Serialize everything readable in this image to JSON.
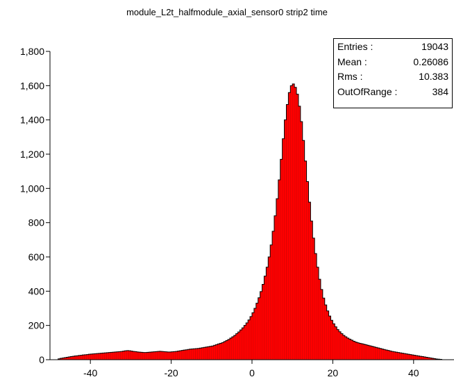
{
  "chart_data": {
    "type": "bar",
    "title": "module_L2t_halfmodule_axial_sensor0 strip2 time",
    "xlabel": "",
    "ylabel": "",
    "xlim": [
      -50,
      50
    ],
    "ylim": [
      0,
      1800
    ],
    "x_ticks": [
      -40,
      -20,
      0,
      20,
      40
    ],
    "x_tick_labels": [
      "-40",
      "-20",
      "0",
      "20",
      "40"
    ],
    "y_ticks": [
      0,
      200,
      400,
      600,
      800,
      1000,
      1200,
      1400,
      1600,
      1800
    ],
    "y_tick_labels": [
      "0",
      "200",
      "400",
      "600",
      "800",
      "1,000",
      "1,200",
      "1,400",
      "1,600",
      "1,800"
    ],
    "grid": false,
    "bin_edges_start": -48,
    "bin_width": 0.5,
    "series": [
      {
        "color": "#ff0000",
        "values": [
          5,
          8,
          10,
          12,
          14,
          16,
          18,
          20,
          22,
          23,
          25,
          26,
          28,
          29,
          30,
          32,
          33,
          34,
          35,
          36,
          37,
          38,
          39,
          40,
          41,
          42,
          43,
          44,
          45,
          46,
          47,
          48,
          50,
          52,
          53,
          52,
          50,
          48,
          47,
          45,
          44,
          43,
          42,
          42,
          43,
          44,
          45,
          46,
          47,
          48,
          49,
          48,
          47,
          46,
          45,
          45,
          46,
          47,
          48,
          50,
          52,
          54,
          56,
          58,
          60,
          62,
          63,
          64,
          65,
          66,
          68,
          70,
          72,
          74,
          76,
          78,
          80,
          84,
          88,
          92,
          96,
          100,
          106,
          112,
          118,
          126,
          134,
          142,
          152,
          162,
          174,
          186,
          200,
          215,
          232,
          252,
          274,
          300,
          330,
          362,
          398,
          440,
          488,
          540,
          600,
          670,
          750,
          840,
          940,
          1050,
          1170,
          1290,
          1400,
          1490,
          1560,
          1600,
          1610,
          1590,
          1550,
          1480,
          1390,
          1280,
          1160,
          1040,
          920,
          810,
          710,
          620,
          540,
          470,
          410,
          360,
          320,
          285,
          255,
          230,
          210,
          192,
          176,
          163,
          152,
          142,
          134,
          126,
          120,
          114,
          108,
          103,
          99,
          96,
          93,
          90,
          87,
          84,
          81,
          78,
          75,
          72,
          69,
          66,
          63,
          60,
          57,
          54,
          51,
          48,
          46,
          44,
          42,
          40,
          38,
          36,
          34,
          32,
          30,
          28,
          26,
          24,
          22,
          20,
          18,
          16,
          14,
          12,
          10,
          8,
          6,
          4,
          3,
          2
        ]
      }
    ],
    "stats": {
      "entries_label": "Entries :",
      "entries_value": "19043",
      "mean_label": "Mean :",
      "mean_value": "0.26086",
      "rms_label": "Rms :",
      "rms_value": "10.383",
      "outofrange_label": "OutOfRange :",
      "outofrange_value": "384"
    }
  }
}
